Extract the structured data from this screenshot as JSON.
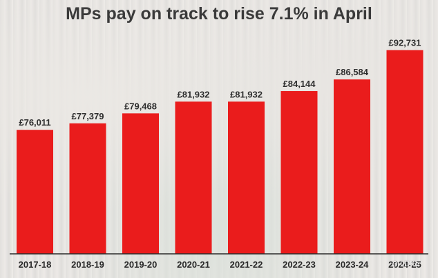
{
  "chart_data": {
    "type": "bar",
    "title": "MPs pay on track to rise 7.1% in April",
    "categories": [
      "2017-18",
      "2018-19",
      "2019-20",
      "2020-21",
      "2021-22",
      "2022-23",
      "2023-24",
      "2024-25"
    ],
    "values": [
      76011,
      77379,
      79468,
      81932,
      81932,
      84144,
      86584,
      92731
    ],
    "value_labels": [
      "£76,011",
      "£77,379",
      "£79,468",
      "£81,932",
      "£81,932",
      "£84,144",
      "£86,584",
      "£92,731"
    ],
    "xlabel": "",
    "ylabel": "",
    "ylim": [
      50000,
      95000
    ],
    "grid": false,
    "legend": "none",
    "bar_color": "#ea1c1c"
  },
  "watermark": "⊙ LDKe"
}
